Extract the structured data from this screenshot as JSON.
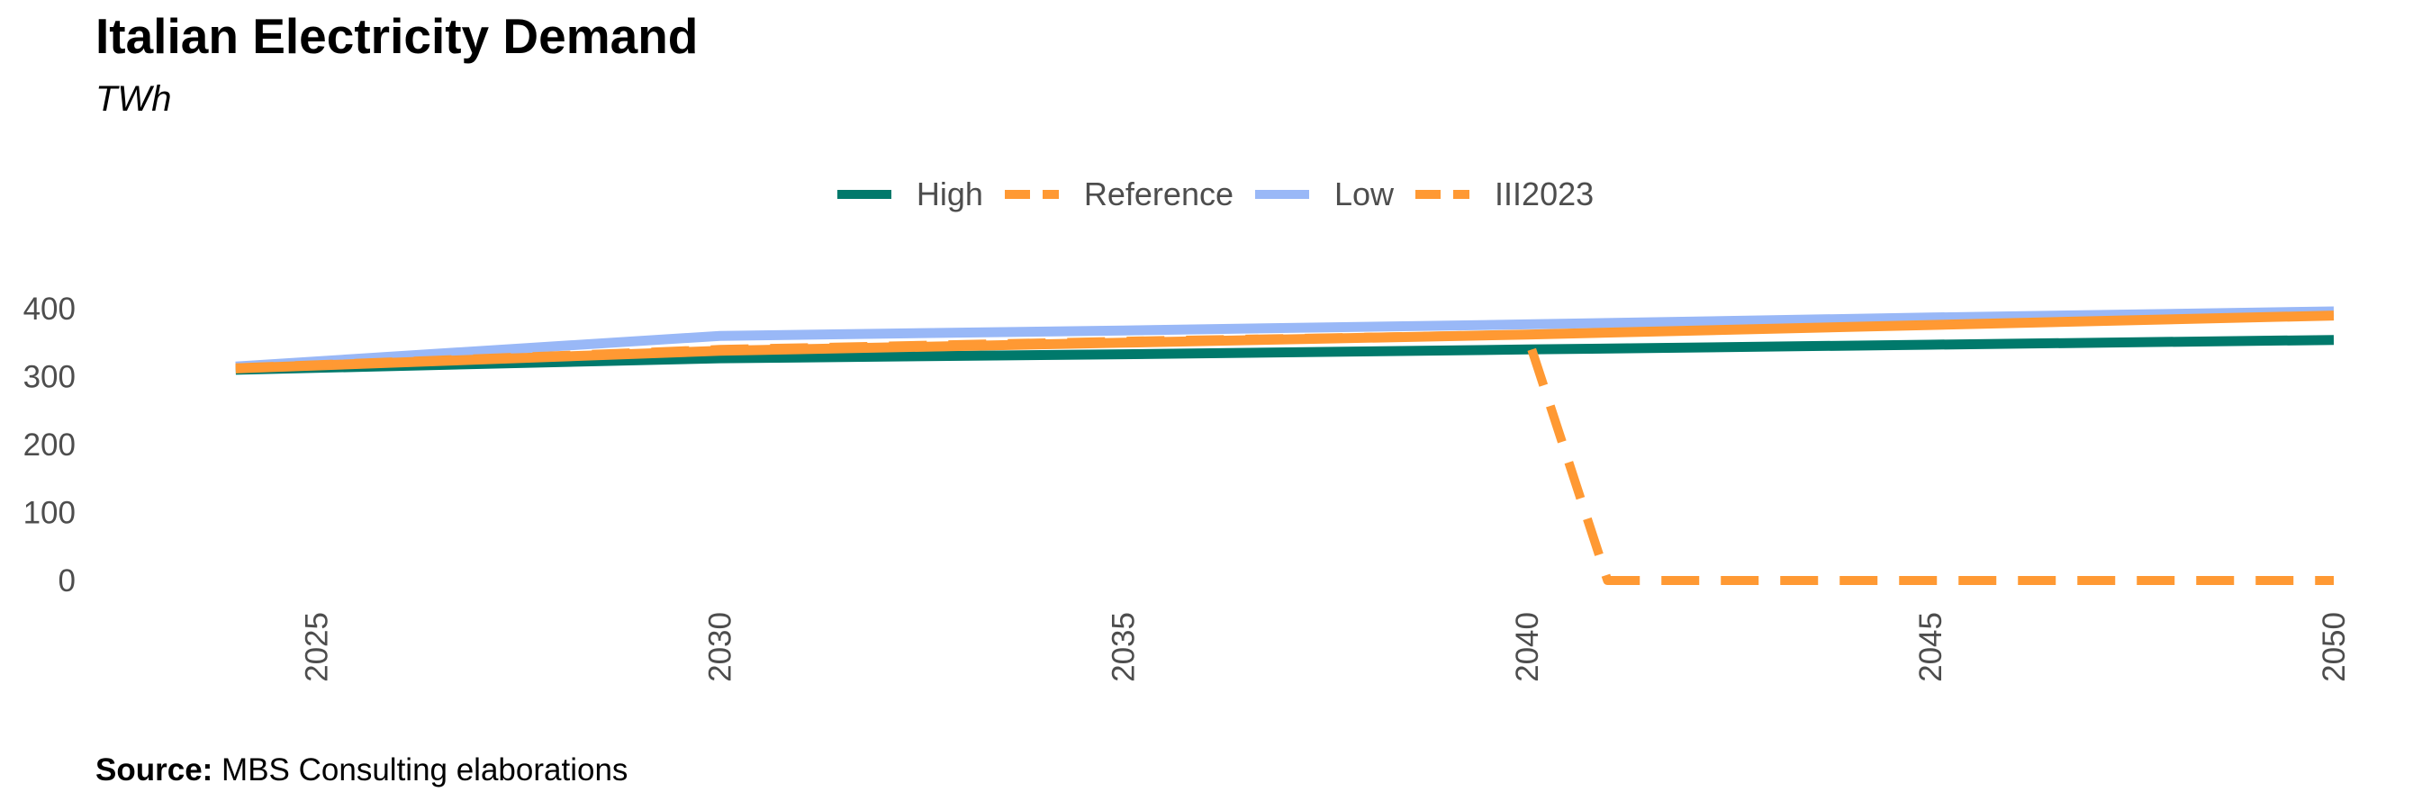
{
  "chart_data": {
    "type": "line",
    "title": "Italian Electricity Demand",
    "subtitle": "TWh",
    "source_label": "Source:",
    "source_text": "MBS Consulting elaborations",
    "xlabel": "",
    "ylabel": "",
    "xlim": [
      2023.6,
      2050
    ],
    "ylim": [
      0,
      400
    ],
    "xticks": [
      2025,
      2030,
      2035,
      2040,
      2045,
      2050
    ],
    "yticks": [
      0,
      100,
      200,
      300,
      400
    ],
    "grid": false,
    "legend_position": "top",
    "series": [
      {
        "name": "High",
        "color": "#00796b",
        "dash": "solid",
        "x": [
          2024,
          2030,
          2035,
          2040,
          2045,
          2050
        ],
        "y": [
          310,
          327,
          333,
          340,
          347,
          354
        ]
      },
      {
        "name": "Reference",
        "color": "#ff9933",
        "dash": "dashed",
        "x": [
          2024,
          2030,
          2035,
          2040,
          2045,
          2050
        ],
        "y": [
          312,
          338,
          350,
          362,
          376,
          390
        ]
      },
      {
        "name": "Low",
        "color": "#99b8f7",
        "dash": "solid",
        "x": [
          2024,
          2030,
          2035,
          2040,
          2045,
          2050
        ],
        "y": [
          315,
          360,
          368,
          377,
          387,
          396
        ]
      },
      {
        "name": "III2023",
        "color": "#ff9933",
        "dash": "dashed",
        "x": [
          2024,
          2030,
          2035,
          2040,
          2041,
          2045,
          2050
        ],
        "y": [
          313,
          340,
          352,
          362,
          0,
          0,
          0
        ]
      }
    ]
  }
}
